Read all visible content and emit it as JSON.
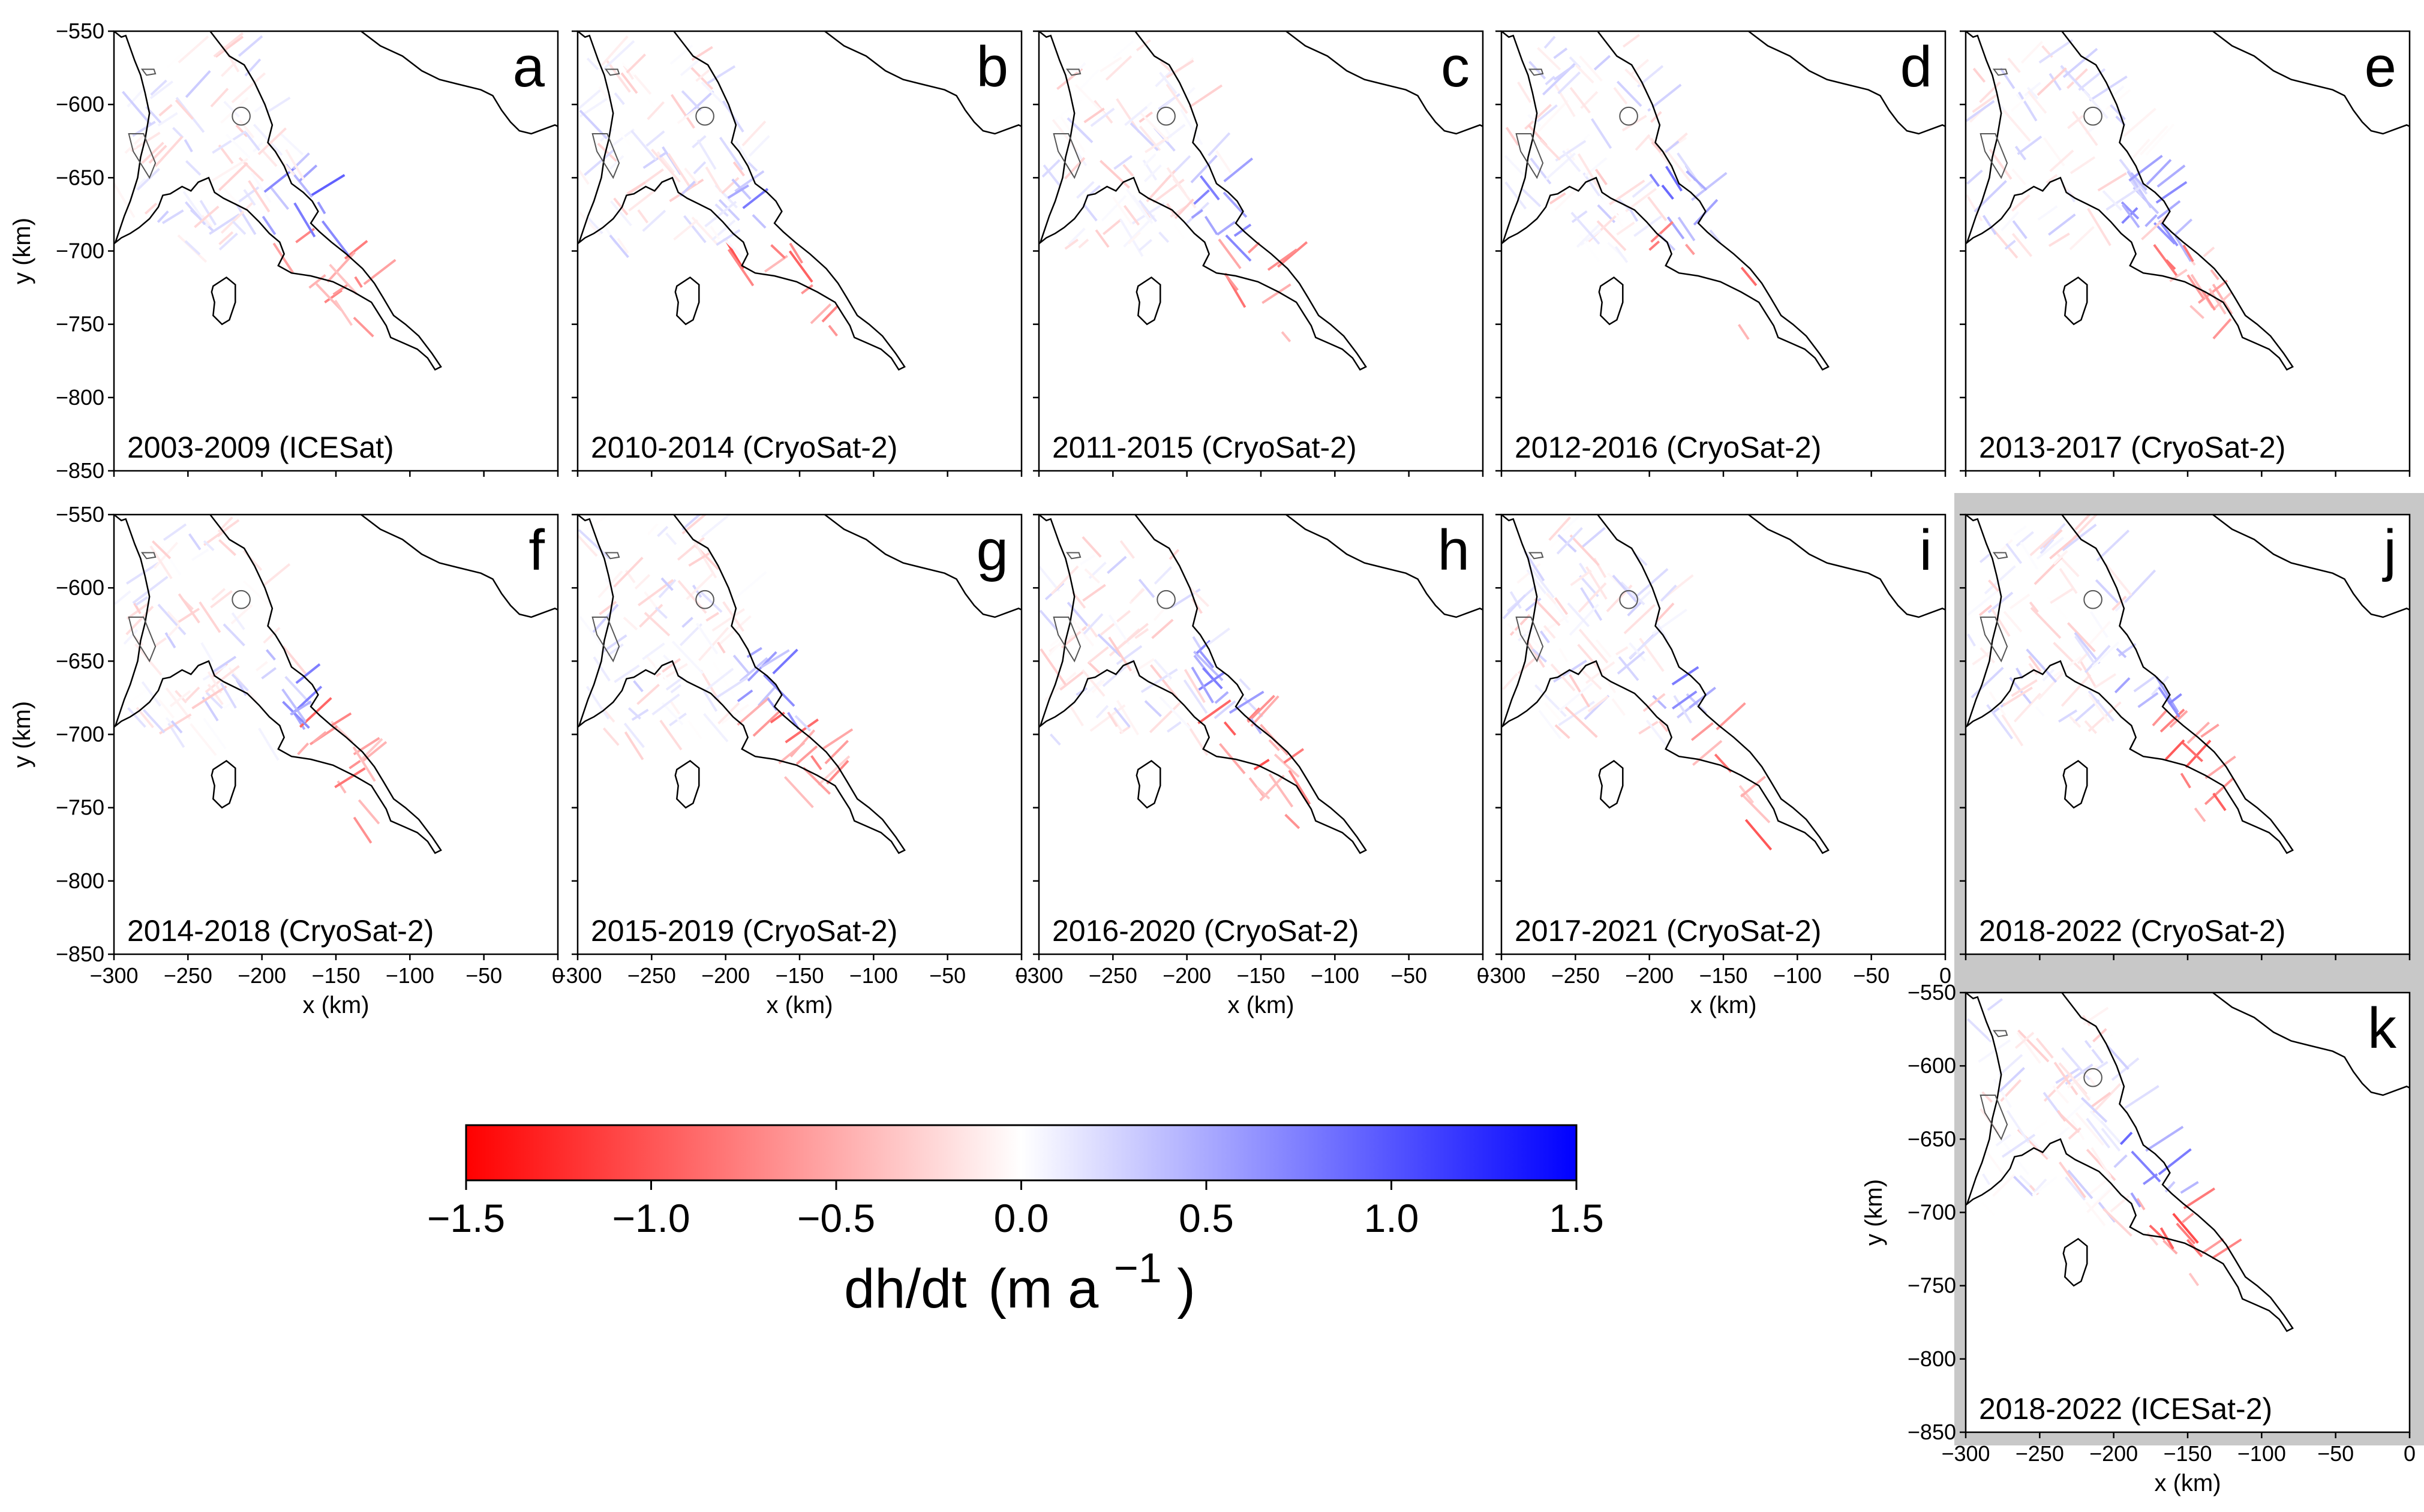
{
  "chart_data": {
    "type": "heatmap",
    "panel_axes": {
      "xlabel": "x (km)",
      "ylabel": "y (km)",
      "xlim": [
        -300,
        0
      ],
      "ylim": [
        -850,
        -550
      ],
      "xticks": [
        -300,
        -250,
        -200,
        -150,
        -100,
        -50,
        0
      ],
      "yticks": [
        -550,
        -600,
        -650,
        -700,
        -750,
        -800,
        -850
      ],
      "xtick_labels": [
        "−300",
        "−250",
        "−200",
        "−150",
        "−100",
        "−50",
        "0"
      ],
      "ytick_labels": [
        "−550",
        "−600",
        "−650",
        "−700",
        "−750",
        "−800",
        "−850"
      ]
    },
    "panels": [
      {
        "letter": "a",
        "period": "2003-2009 (ICESat)",
        "highlighted": false
      },
      {
        "letter": "b",
        "period": "2010-2014 (CryoSat-2)",
        "highlighted": false
      },
      {
        "letter": "c",
        "period": "2011-2015 (CryoSat-2)",
        "highlighted": false
      },
      {
        "letter": "d",
        "period": "2012-2016 (CryoSat-2)",
        "highlighted": false
      },
      {
        "letter": "e",
        "period": "2013-2017 (CryoSat-2)",
        "highlighted": false
      },
      {
        "letter": "f",
        "period": "2014-2018 (CryoSat-2)",
        "highlighted": false
      },
      {
        "letter": "g",
        "period": "2015-2019 (CryoSat-2)",
        "highlighted": false
      },
      {
        "letter": "h",
        "period": "2016-2020 (CryoSat-2)",
        "highlighted": false
      },
      {
        "letter": "i",
        "period": "2017-2021 (CryoSat-2)",
        "highlighted": false
      },
      {
        "letter": "j",
        "period": "2018-2022 (CryoSat-2)",
        "highlighted": true
      },
      {
        "letter": "k",
        "period": "2018-2022 (ICESat-2)",
        "highlighted": true
      }
    ],
    "colorbar": {
      "cmap": "bwr_r",
      "colors": {
        "min": "#ff0000",
        "mid": "#ffffff",
        "max": "#0000ff"
      },
      "range": [
        -1.5,
        1.5
      ],
      "ticks": [
        -1.5,
        -1.0,
        -0.5,
        0.0,
        0.5,
        1.0,
        1.5
      ],
      "tick_labels": [
        "−1.5",
        "−1.0",
        "−0.5",
        "0.0",
        "0.5",
        "1.0",
        "1.5"
      ],
      "label_main": "dh/dt",
      "label_unit": "(m a",
      "label_exp": "−1",
      "label_close": ")"
    },
    "highlight_color": "#c8c8c8"
  }
}
